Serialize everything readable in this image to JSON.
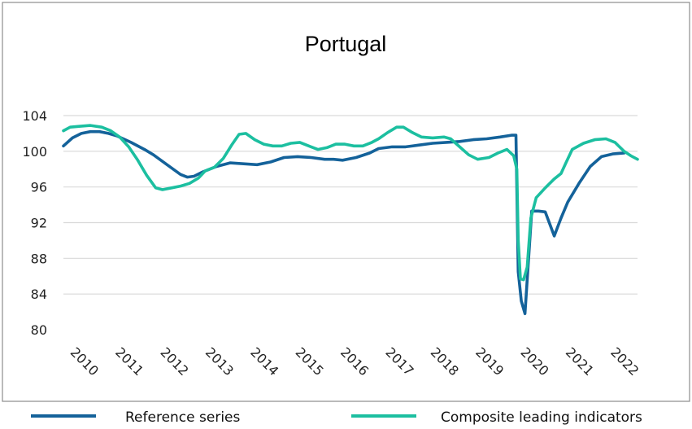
{
  "colors": {
    "reference": "#14629A",
    "cli": "#1CBFA0",
    "grid": "#d9d9d9",
    "frame": "#8c8c8c"
  },
  "chart_data": {
    "type": "line",
    "title": "Portugal",
    "xlabel": "",
    "ylabel": "",
    "grid": true,
    "legend_position": "bottom",
    "xlim": [
      2010,
      2022.75
    ],
    "ylim": [
      80,
      104
    ],
    "y_ticks": [
      "80",
      "84",
      "88",
      "92",
      "96",
      "100",
      "104"
    ],
    "x_ticks": [
      "2010",
      "2011",
      "2012",
      "2013",
      "2014",
      "2015",
      "2016",
      "2017",
      "2018",
      "2019",
      "2020",
      "2021",
      "2022"
    ],
    "series": [
      {
        "name": "Reference series",
        "color": "#14629A",
        "points": [
          [
            2010.0,
            100.6
          ],
          [
            2010.2,
            101.5
          ],
          [
            2010.4,
            102.0
          ],
          [
            2010.6,
            102.2
          ],
          [
            2010.8,
            102.2
          ],
          [
            2011.0,
            102.0
          ],
          [
            2011.2,
            101.7
          ],
          [
            2011.5,
            101.0
          ],
          [
            2011.8,
            100.2
          ],
          [
            2012.0,
            99.6
          ],
          [
            2012.3,
            98.5
          ],
          [
            2012.6,
            97.4
          ],
          [
            2012.75,
            97.1
          ],
          [
            2012.9,
            97.2
          ],
          [
            2013.1,
            97.7
          ],
          [
            2013.4,
            98.3
          ],
          [
            2013.7,
            98.7
          ],
          [
            2014.0,
            98.6
          ],
          [
            2014.3,
            98.5
          ],
          [
            2014.6,
            98.8
          ],
          [
            2014.9,
            99.3
          ],
          [
            2015.2,
            99.4
          ],
          [
            2015.5,
            99.3
          ],
          [
            2015.8,
            99.1
          ],
          [
            2016.0,
            99.1
          ],
          [
            2016.2,
            99.0
          ],
          [
            2016.5,
            99.3
          ],
          [
            2016.8,
            99.8
          ],
          [
            2017.0,
            100.3
          ],
          [
            2017.3,
            100.5
          ],
          [
            2017.6,
            100.5
          ],
          [
            2017.9,
            100.7
          ],
          [
            2018.2,
            100.9
          ],
          [
            2018.5,
            101.0
          ],
          [
            2018.8,
            101.1
          ],
          [
            2019.1,
            101.3
          ],
          [
            2019.4,
            101.4
          ],
          [
            2019.7,
            101.6
          ],
          [
            2019.95,
            101.8
          ],
          [
            2020.05,
            101.8
          ],
          [
            2020.1,
            86.5
          ],
          [
            2020.17,
            83.2
          ],
          [
            2020.25,
            81.8
          ],
          [
            2020.4,
            93.3
          ],
          [
            2020.55,
            93.3
          ],
          [
            2020.7,
            93.2
          ],
          [
            2020.9,
            90.5
          ],
          [
            2021.05,
            92.5
          ],
          [
            2021.2,
            94.3
          ],
          [
            2021.45,
            96.4
          ],
          [
            2021.7,
            98.3
          ],
          [
            2021.95,
            99.4
          ],
          [
            2022.2,
            99.7
          ],
          [
            2022.45,
            99.8
          ]
        ]
      },
      {
        "name": "Composite leading indicators",
        "color": "#1CBFA0",
        "points": [
          [
            2010.0,
            102.3
          ],
          [
            2010.15,
            102.7
          ],
          [
            2010.35,
            102.8
          ],
          [
            2010.6,
            102.9
          ],
          [
            2010.85,
            102.7
          ],
          [
            2011.05,
            102.3
          ],
          [
            2011.25,
            101.6
          ],
          [
            2011.45,
            100.5
          ],
          [
            2011.65,
            99.0
          ],
          [
            2011.85,
            97.3
          ],
          [
            2012.05,
            95.9
          ],
          [
            2012.2,
            95.7
          ],
          [
            2012.4,
            95.9
          ],
          [
            2012.6,
            96.1
          ],
          [
            2012.8,
            96.4
          ],
          [
            2013.0,
            97.0
          ],
          [
            2013.15,
            97.8
          ],
          [
            2013.35,
            98.2
          ],
          [
            2013.55,
            99.2
          ],
          [
            2013.75,
            100.8
          ],
          [
            2013.9,
            101.9
          ],
          [
            2014.05,
            102.0
          ],
          [
            2014.25,
            101.3
          ],
          [
            2014.45,
            100.8
          ],
          [
            2014.65,
            100.6
          ],
          [
            2014.85,
            100.6
          ],
          [
            2015.05,
            100.9
          ],
          [
            2015.25,
            101.0
          ],
          [
            2015.45,
            100.6
          ],
          [
            2015.65,
            100.2
          ],
          [
            2015.85,
            100.4
          ],
          [
            2016.05,
            100.8
          ],
          [
            2016.25,
            100.8
          ],
          [
            2016.45,
            100.6
          ],
          [
            2016.65,
            100.6
          ],
          [
            2016.85,
            101.0
          ],
          [
            2017.0,
            101.4
          ],
          [
            2017.2,
            102.1
          ],
          [
            2017.4,
            102.7
          ],
          [
            2017.55,
            102.7
          ],
          [
            2017.75,
            102.1
          ],
          [
            2017.95,
            101.6
          ],
          [
            2018.2,
            101.5
          ],
          [
            2018.45,
            101.6
          ],
          [
            2018.6,
            101.4
          ],
          [
            2018.8,
            100.5
          ],
          [
            2019.0,
            99.6
          ],
          [
            2019.2,
            99.1
          ],
          [
            2019.45,
            99.3
          ],
          [
            2019.65,
            99.8
          ],
          [
            2019.85,
            100.2
          ],
          [
            2020.0,
            99.5
          ],
          [
            2020.07,
            98.0
          ],
          [
            2020.1,
            90.0
          ],
          [
            2020.15,
            85.7
          ],
          [
            2020.22,
            85.6
          ],
          [
            2020.3,
            87.0
          ],
          [
            2020.38,
            92.5
          ],
          [
            2020.5,
            94.8
          ],
          [
            2020.7,
            95.9
          ],
          [
            2020.9,
            96.9
          ],
          [
            2021.05,
            97.5
          ],
          [
            2021.15,
            98.6
          ],
          [
            2021.3,
            100.2
          ],
          [
            2021.55,
            100.9
          ],
          [
            2021.8,
            101.3
          ],
          [
            2022.05,
            101.4
          ],
          [
            2022.25,
            101.0
          ],
          [
            2022.45,
            100.0
          ],
          [
            2022.6,
            99.5
          ],
          [
            2022.75,
            99.1
          ]
        ]
      }
    ]
  }
}
